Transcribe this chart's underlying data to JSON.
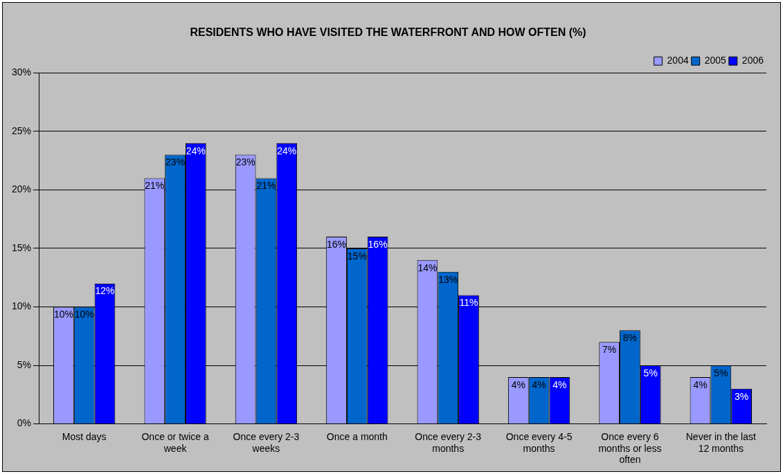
{
  "chart_data": {
    "type": "bar",
    "title": "RESIDENTS WHO HAVE VISITED THE WATERFRONT AND HOW OFTEN (%)",
    "categories": [
      "Most days",
      "Once or twice a week",
      "Once every 2-3 weeks",
      "Once a month",
      "Once every 2-3 months",
      "Once every 4-5 months",
      "Once every 6 months or less often",
      "Never in the last 12 months"
    ],
    "series": [
      {
        "name": "2004",
        "color": "#9999ff",
        "values": [
          10,
          21,
          23,
          16,
          14,
          4,
          7,
          4
        ],
        "value_labels": [
          "10%",
          "21%",
          "23%",
          "16%",
          "14%",
          "4%",
          "7%",
          "4%"
        ]
      },
      {
        "name": "2005",
        "color": "#0066cc",
        "values": [
          10,
          23,
          21,
          15,
          13,
          4,
          8,
          5
        ],
        "value_labels": [
          "10%",
          "23%",
          "21%",
          "15%",
          "13%",
          "4%",
          "8%",
          "5%"
        ]
      },
      {
        "name": "2006",
        "color": "#0000ff",
        "values": [
          12,
          24,
          24,
          16,
          11,
          4,
          5,
          3
        ],
        "value_labels": [
          "12%",
          "24%",
          "24%",
          "16%",
          "11%",
          "4%",
          "5%",
          "3%"
        ]
      }
    ],
    "ylim": [
      0,
      30
    ],
    "yticks": [
      {
        "value": 0,
        "label": "0%"
      },
      {
        "value": 5,
        "label": "5%"
      },
      {
        "value": 10,
        "label": "10%"
      },
      {
        "value": 15,
        "label": "15%"
      },
      {
        "value": 20,
        "label": "20%"
      },
      {
        "value": 25,
        "label": "25%"
      },
      {
        "value": 30,
        "label": "30%"
      }
    ],
    "grid": "y",
    "legend": "top right"
  }
}
